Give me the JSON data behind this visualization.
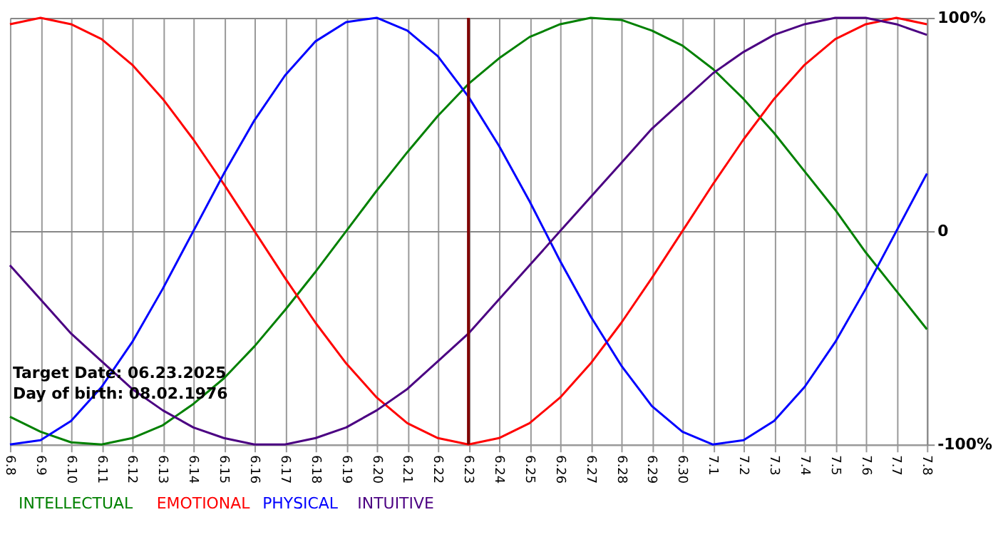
{
  "chart_data": {
    "type": "line",
    "categories": [
      "6.8",
      "6.9",
      "6.10",
      "6.11",
      "6.12",
      "6.13",
      "6.14",
      "6.15",
      "6.16",
      "6.17",
      "6.18",
      "6.19",
      "6.20",
      "6.21",
      "6.22",
      "6.23",
      "6.24",
      "6.25",
      "6.26",
      "6.27",
      "6.28",
      "6.29",
      "6.30",
      "7.1",
      "7.2",
      "7.3",
      "7.4",
      "7.5",
      "7.6",
      "7.7",
      "7.8"
    ],
    "series": [
      {
        "name": "INTELLECTUAL",
        "color": "#008000",
        "values": [
          -87,
          -94,
          -99,
          -100,
          -97,
          -91,
          -81,
          -69,
          -54,
          -37,
          -19,
          0,
          19,
          37,
          54,
          69,
          81,
          91,
          97,
          100,
          99,
          94,
          87,
          76,
          62,
          46,
          28,
          10,
          -10,
          -28,
          -46
        ]
      },
      {
        "name": "EMOTIONAL",
        "color": "#ff0000",
        "values": [
          97,
          100,
          97,
          90,
          78,
          62,
          43,
          22,
          0,
          -22,
          -43,
          -62,
          -78,
          -90,
          -97,
          -100,
          -97,
          -90,
          -78,
          -62,
          -43,
          -22,
          0,
          22,
          43,
          62,
          78,
          90,
          97,
          100,
          97
        ]
      },
      {
        "name": "PHYSICAL",
        "color": "#0000ff",
        "values": [
          -100,
          -98,
          -89,
          -73,
          -52,
          -27,
          0,
          27,
          52,
          73,
          89,
          98,
          100,
          94,
          82,
          63,
          40,
          14,
          -14,
          -40,
          -63,
          -82,
          -94,
          -100,
          -98,
          -89,
          -73,
          -52,
          -27,
          0,
          27
        ]
      },
      {
        "name": "INTUITIVE",
        "color": "#4b0082",
        "values": [
          -16,
          -32,
          -48,
          -61,
          -74,
          -84,
          -92,
          -97,
          -100,
          -100,
          -97,
          -92,
          -84,
          -74,
          -61,
          -48,
          -32,
          -16,
          0,
          16,
          32,
          48,
          61,
          74,
          84,
          92,
          97,
          100,
          100,
          97,
          92
        ]
      }
    ],
    "ylim": [
      -100,
      100
    ],
    "yticks": [
      {
        "value": 100,
        "label": "100%"
      },
      0,
      {
        "value": -100,
        "label": "-100%"
      }
    ],
    "ref_lines": [
      {
        "axis": "x",
        "value": "6.23",
        "color": "#800000"
      }
    ],
    "annotations": [
      "Target Date: 06.23.2025",
      "Day of birth: 08.02.1976"
    ],
    "grid": true,
    "legend": "bottom left",
    "line_style": "solid"
  }
}
